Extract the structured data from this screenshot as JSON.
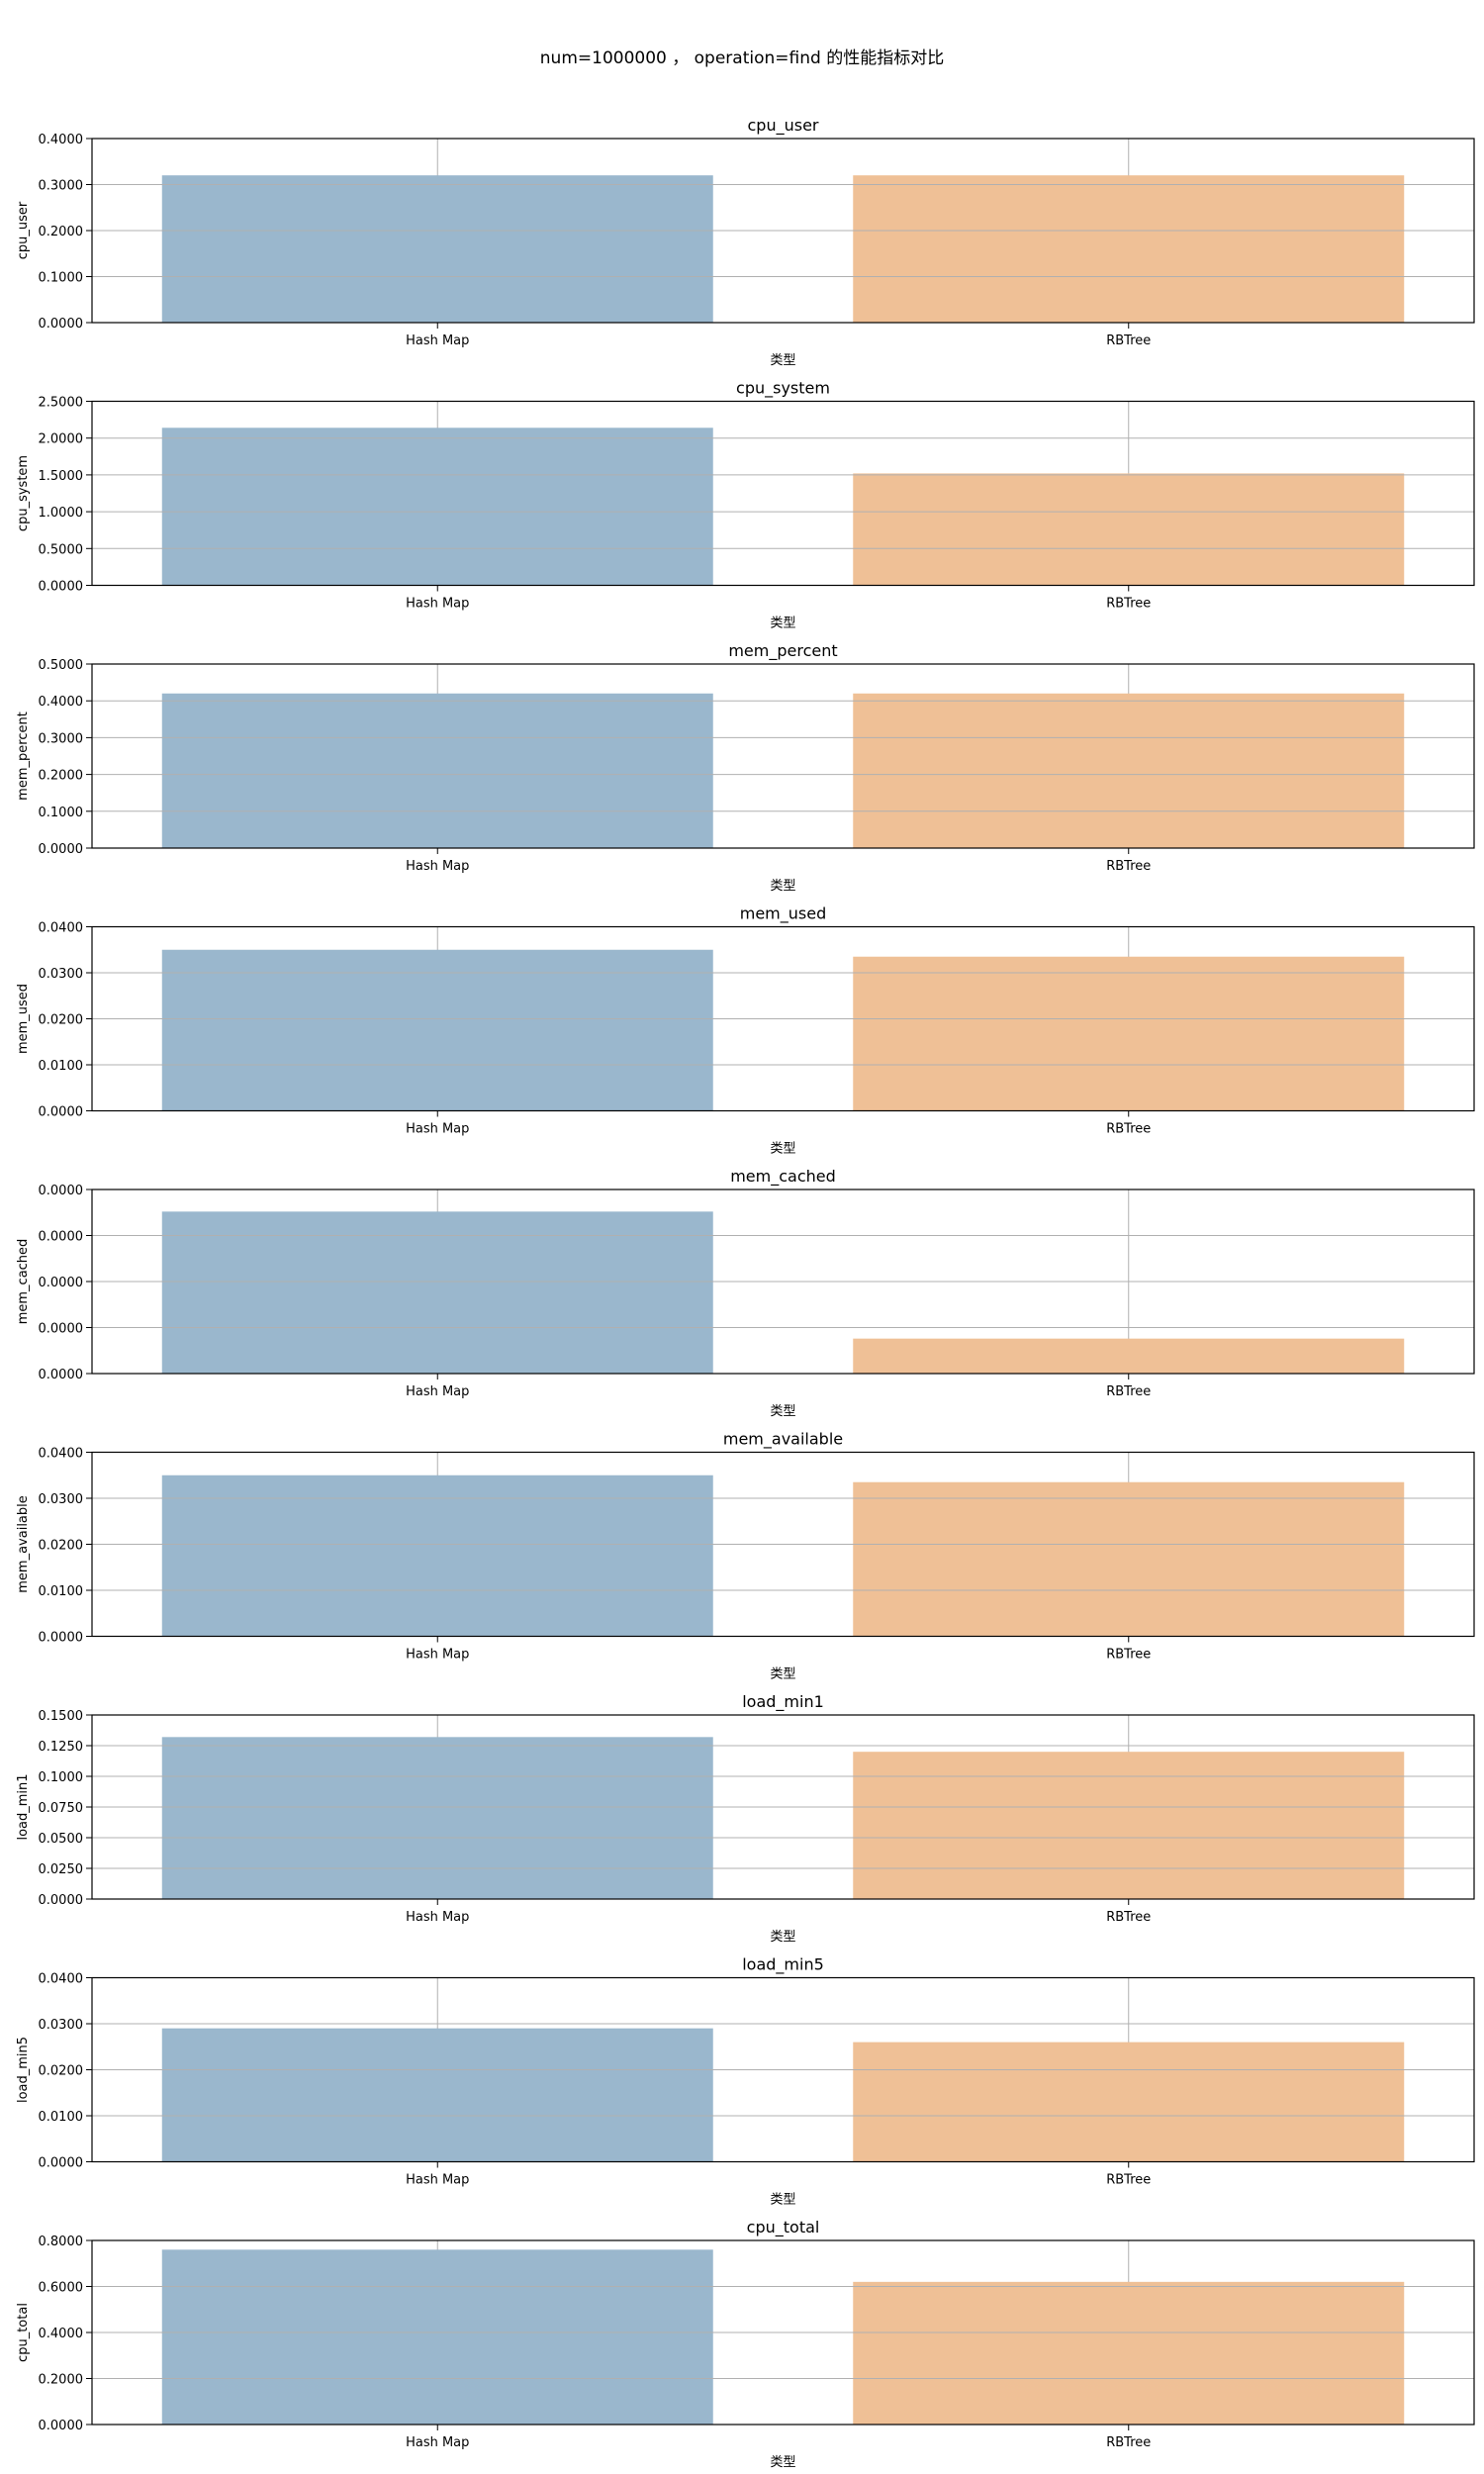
{
  "figure": {
    "title": "num=1000000 ， operation=find 的性能指标对比"
  },
  "style": {
    "bar_colors": [
      "#9ab7cd",
      "#efc096"
    ],
    "grid_color": "#b0b0b0"
  },
  "chart_data": [
    {
      "type": "bar",
      "title": "cpu_user",
      "xlabel": "类型",
      "ylabel": "cpu_user",
      "categories": [
        "Hash Map",
        "RBTree"
      ],
      "values": [
        0.32,
        0.32
      ],
      "ylim": [
        0,
        0.4
      ],
      "yticks": [
        "0.0000",
        "0.1000",
        "0.2000",
        "0.3000",
        "0.4000"
      ],
      "grid": true
    },
    {
      "type": "bar",
      "title": "cpu_system",
      "xlabel": "类型",
      "ylabel": "cpu_system",
      "categories": [
        "Hash Map",
        "RBTree"
      ],
      "values": [
        2.14,
        1.52
      ],
      "ylim": [
        0,
        2.5
      ],
      "yticks": [
        "0.0000",
        "0.5000",
        "1.0000",
        "1.5000",
        "2.0000",
        "2.5000"
      ],
      "grid": true
    },
    {
      "type": "bar",
      "title": "mem_percent",
      "xlabel": "类型",
      "ylabel": "mem_percent",
      "categories": [
        "Hash Map",
        "RBTree"
      ],
      "values": [
        0.42,
        0.42
      ],
      "ylim": [
        0,
        0.5
      ],
      "yticks": [
        "0.0000",
        "0.1000",
        "0.2000",
        "0.3000",
        "0.4000",
        "0.5000"
      ],
      "grid": true
    },
    {
      "type": "bar",
      "title": "mem_used",
      "xlabel": "类型",
      "ylabel": "mem_used",
      "categories": [
        "Hash Map",
        "RBTree"
      ],
      "values": [
        0.035,
        0.0335
      ],
      "ylim": [
        0,
        0.04
      ],
      "yticks": [
        "0.0000",
        "0.0100",
        "0.0200",
        "0.0300",
        "0.0400"
      ],
      "grid": true
    },
    {
      "type": "bar",
      "title": "mem_cached",
      "xlabel": "类型",
      "ylabel": "mem_cached",
      "categories": [
        "Hash Map",
        "RBTree"
      ],
      "values": [
        0.88,
        0.19
      ],
      "ylim": [
        0,
        1
      ],
      "yticks": [
        "0.0000",
        "0.0000",
        "0.0000",
        "0.0000",
        "0.0000"
      ],
      "grid": true
    },
    {
      "type": "bar",
      "title": "mem_available",
      "xlabel": "类型",
      "ylabel": "mem_available",
      "categories": [
        "Hash Map",
        "RBTree"
      ],
      "values": [
        0.035,
        0.0335
      ],
      "ylim": [
        0,
        0.04
      ],
      "yticks": [
        "0.0000",
        "0.0100",
        "0.0200",
        "0.0300",
        "0.0400"
      ],
      "grid": true
    },
    {
      "type": "bar",
      "title": "load_min1",
      "xlabel": "类型",
      "ylabel": "load_min1",
      "categories": [
        "Hash Map",
        "RBTree"
      ],
      "values": [
        0.132,
        0.12
      ],
      "ylim": [
        0,
        0.15
      ],
      "yticks": [
        "0.0000",
        "0.0250",
        "0.0500",
        "0.0750",
        "0.1000",
        "0.1250",
        "0.1500"
      ],
      "grid": true
    },
    {
      "type": "bar",
      "title": "load_min5",
      "xlabel": "类型",
      "ylabel": "load_min5",
      "categories": [
        "Hash Map",
        "RBTree"
      ],
      "values": [
        0.029,
        0.026
      ],
      "ylim": [
        0,
        0.04
      ],
      "yticks": [
        "0.0000",
        "0.0100",
        "0.0200",
        "0.0300",
        "0.0400"
      ],
      "grid": true
    },
    {
      "type": "bar",
      "title": "cpu_total",
      "xlabel": "类型",
      "ylabel": "cpu_total",
      "categories": [
        "Hash Map",
        "RBTree"
      ],
      "values": [
        0.76,
        0.62
      ],
      "ylim": [
        0,
        0.8
      ],
      "yticks": [
        "0.0000",
        "0.2000",
        "0.4000",
        "0.6000",
        "0.8000"
      ],
      "grid": true
    }
  ]
}
